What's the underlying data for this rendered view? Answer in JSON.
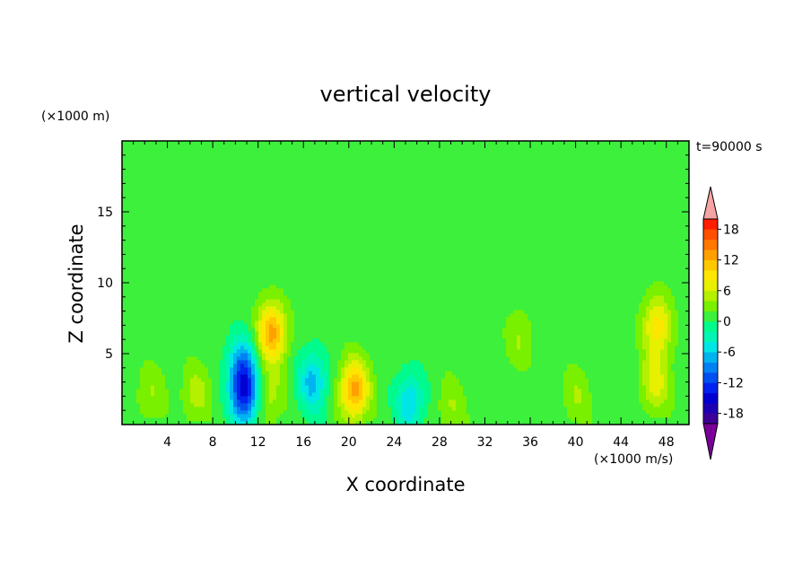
{
  "chart_data": {
    "type": "heatmap",
    "title": "vertical velocity",
    "xlabel": "X coordinate",
    "ylabel": "Z coordinate",
    "x_unit": "(×1000 m/s)",
    "y_unit": "(×1000 m)",
    "time_label": "t=90000 s",
    "xlim": [
      0,
      50
    ],
    "ylim": [
      0,
      20
    ],
    "x_ticks": [
      4,
      8,
      12,
      16,
      20,
      24,
      28,
      32,
      36,
      40,
      44,
      48
    ],
    "y_ticks": [
      5,
      10,
      15
    ],
    "colorbar": {
      "levels": [
        -20,
        -18,
        -16,
        -14,
        -12,
        -10,
        -8,
        -6,
        -4,
        -2,
        0,
        2,
        4,
        6,
        8,
        10,
        12,
        14,
        16,
        18,
        20
      ],
      "tick_labels": [
        18,
        12,
        6,
        0,
        -6,
        -12,
        -18
      ],
      "colors": [
        "#7a0099",
        "#3c0096",
        "#1e00b4",
        "#0000d2",
        "#0022ee",
        "#0050f0",
        "#0082f5",
        "#00b4f0",
        "#00e6e6",
        "#00f5b4",
        "#00fa8c",
        "#3cf03c",
        "#78f000",
        "#b4f000",
        "#e6f000",
        "#ffe600",
        "#ffc800",
        "#ffa000",
        "#ff7800",
        "#ff5000",
        "#ff1e00",
        "#f4a4a4"
      ]
    },
    "features": [
      {
        "x": 2.5,
        "z": 2.2,
        "w": 3
      },
      {
        "x": 6.5,
        "z": 2.2,
        "w": 4
      },
      {
        "x": 10.8,
        "z": 2.0,
        "w": -13
      },
      {
        "x": 10.6,
        "z": 4.2,
        "w": -9
      },
      {
        "x": 13.2,
        "z": 6.5,
        "w": 12
      },
      {
        "x": 13.0,
        "z": 2.0,
        "w": 4
      },
      {
        "x": 16.8,
        "z": 3.0,
        "w": -8
      },
      {
        "x": 20.5,
        "z": 2.5,
        "w": 12
      },
      {
        "x": 25.4,
        "z": 1.6,
        "w": -7
      },
      {
        "x": 29.0,
        "z": 1.2,
        "w": 3
      },
      {
        "x": 35.0,
        "z": 6.0,
        "w": 3
      },
      {
        "x": 40.0,
        "z": 2.0,
        "w": 3
      },
      {
        "x": 47.2,
        "z": 7.0,
        "w": 8
      },
      {
        "x": 47.0,
        "z": 3.0,
        "w": 6
      }
    ]
  }
}
